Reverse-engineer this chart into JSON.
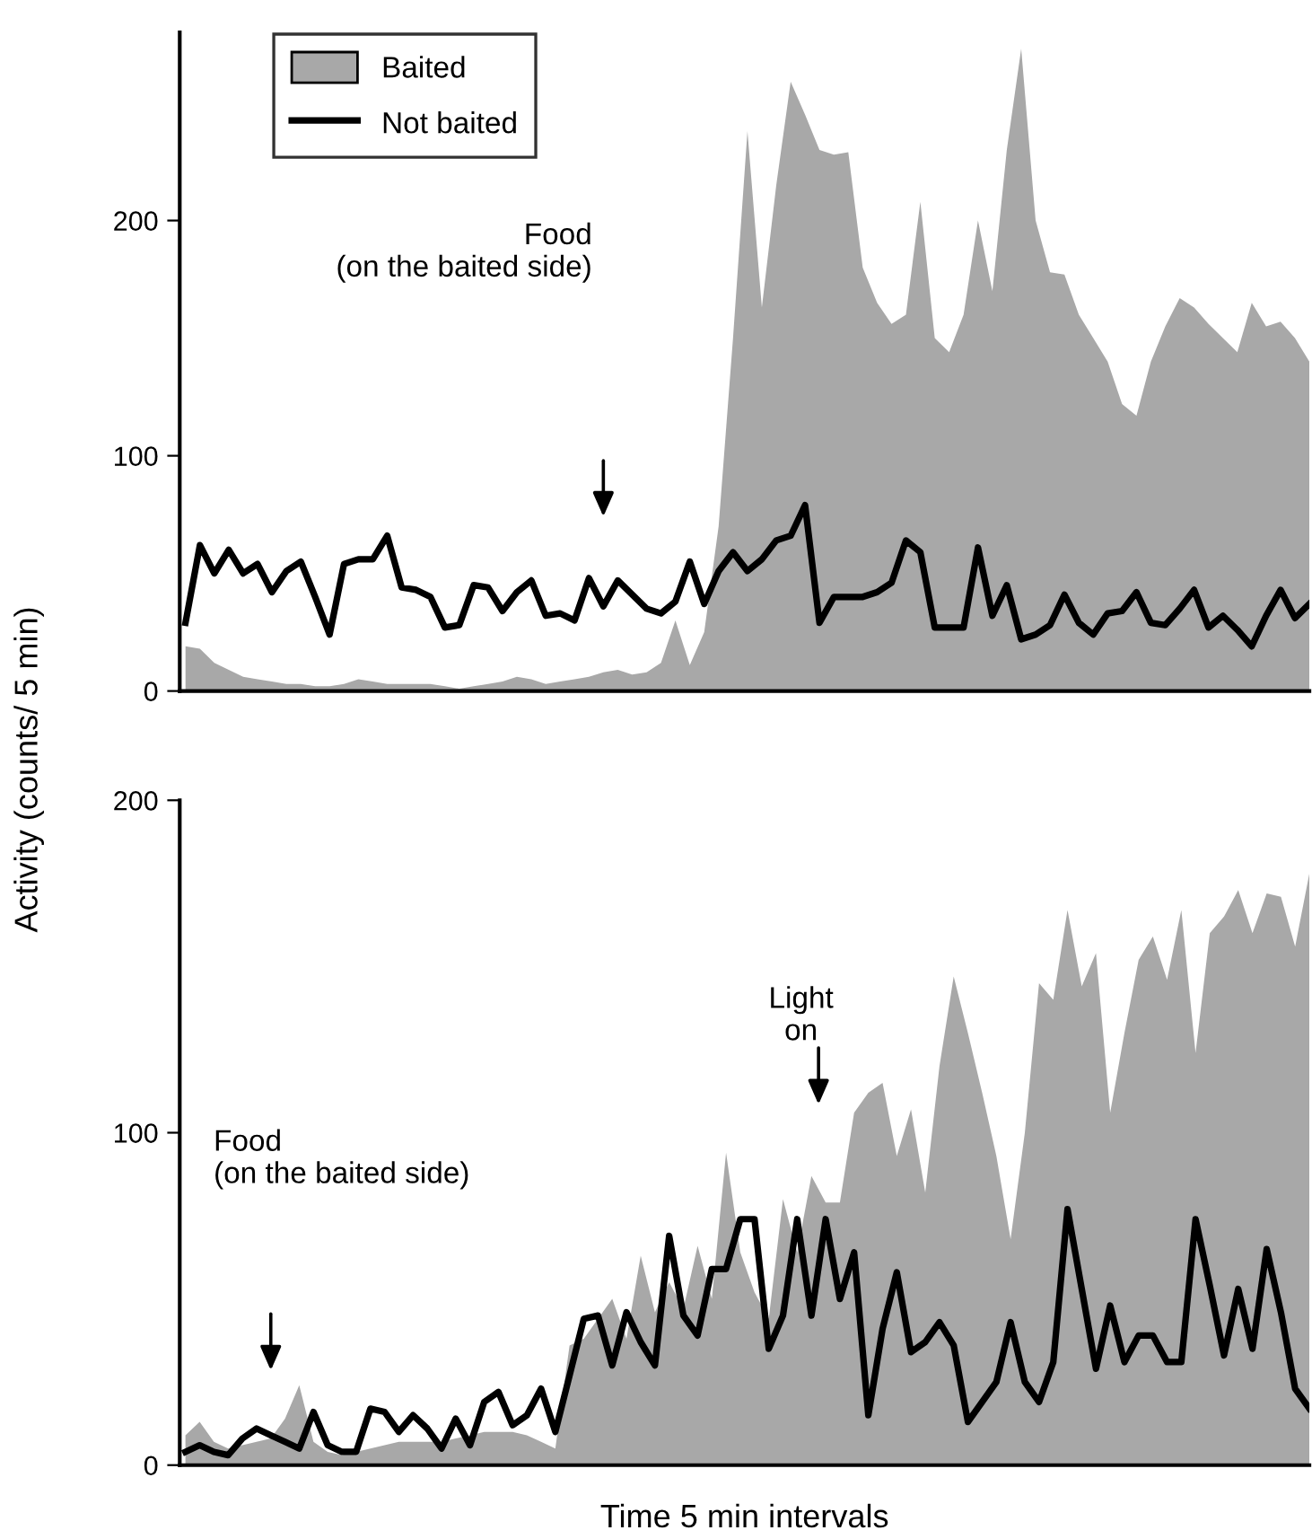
{
  "chart_data": [
    {
      "type": "area",
      "ylabel": "Activity (counts/ 5 min)",
      "categories": [
        null,
        null,
        null,
        null,
        null,
        null,
        null,
        null,
        null,
        null,
        null,
        null,
        null,
        null,
        null,
        null,
        null,
        null,
        null,
        null,
        null,
        null,
        null,
        null,
        null,
        null,
        null,
        null,
        null,
        null,
        null,
        null,
        null,
        null,
        null,
        null,
        null,
        null,
        null,
        null,
        null,
        null,
        null,
        null,
        null,
        null,
        null,
        null,
        null,
        null,
        null,
        null,
        null,
        null,
        null,
        null,
        null,
        null,
        null,
        null,
        null,
        null,
        null,
        null,
        null,
        null,
        null,
        null,
        null,
        null,
        null,
        null,
        null,
        null,
        null,
        null,
        null,
        null,
        null
      ],
      "series": [
        {
          "name": "Baited",
          "color": "#a8a8a8",
          "values": [
            19,
            18,
            12,
            9,
            6,
            5,
            4,
            3,
            3,
            2,
            2,
            3,
            5,
            4,
            3,
            3,
            3,
            3,
            2,
            1,
            2,
            3,
            4,
            6,
            5,
            3,
            4,
            5,
            6,
            8,
            9,
            7,
            8,
            12,
            30,
            11,
            25,
            70,
            150,
            238,
            163,
            215,
            259,
            245,
            230,
            228,
            229,
            180,
            165,
            156,
            160,
            208,
            150,
            144,
            160,
            200,
            170,
            230,
            273,
            200,
            178,
            177,
            160,
            150,
            140,
            122,
            117,
            140,
            155,
            167,
            163,
            156,
            150,
            144,
            165,
            155,
            157,
            150,
            140
          ]
        },
        {
          "name": "Not baited",
          "type": "line",
          "color": "#000000",
          "values": [
            29,
            62,
            50,
            60,
            50,
            54,
            42,
            51,
            55,
            40,
            24,
            54,
            56,
            56,
            66,
            44,
            43,
            40,
            27,
            28,
            45,
            44,
            34,
            42,
            47,
            32,
            33,
            30,
            48,
            36,
            47,
            41,
            35,
            33,
            38,
            55,
            37,
            51,
            59,
            51,
            56,
            64,
            66,
            79,
            29,
            40,
            40,
            40,
            42,
            46,
            64,
            59,
            27,
            27,
            27,
            61,
            32,
            45,
            22,
            24,
            28,
            41,
            29,
            24,
            33,
            34,
            42,
            29,
            28,
            35,
            43,
            27,
            32,
            26,
            19,
            32,
            43,
            31,
            37
          ]
        }
      ],
      "annotations": [
        "Food\n(on the baited side)"
      ],
      "ylim": [
        0,
        280
      ],
      "yticks": [
        0,
        100,
        200
      ],
      "tick_labels": "y",
      "legend": "top left",
      "grid": false,
      "line_style": "solid"
    },
    {
      "type": "area",
      "xlabel": "Time 5 min intervals",
      "categories": [
        null,
        null,
        null,
        null,
        null,
        null,
        null,
        null,
        null,
        null,
        null,
        null,
        null,
        null,
        null,
        null,
        null,
        null,
        null,
        null,
        null,
        null,
        null,
        null,
        null,
        null,
        null,
        null,
        null,
        null,
        null,
        null,
        null,
        null,
        null,
        null,
        null,
        null,
        null,
        null,
        null,
        null,
        null,
        null,
        null,
        null,
        null,
        null,
        null,
        null,
        null,
        null,
        null,
        null,
        null,
        null,
        null,
        null,
        null,
        null,
        null,
        null,
        null,
        null,
        null,
        null,
        null,
        null,
        null,
        null,
        null,
        null,
        null,
        null,
        null,
        null,
        null,
        null,
        null,
        null
      ],
      "series": [
        {
          "color": "#a8a8a8",
          "values": [
            9,
            13,
            7,
            5,
            6,
            7,
            8,
            14,
            24,
            7,
            4,
            3,
            4,
            5,
            6,
            7,
            7,
            7,
            7,
            8,
            9,
            10,
            10,
            10,
            9,
            7,
            5,
            36,
            38,
            44,
            50,
            38,
            63,
            46,
            55,
            47,
            66,
            50,
            94,
            64,
            52,
            44,
            80,
            64,
            87,
            79,
            79,
            106,
            112,
            115,
            93,
            107,
            82,
            120,
            147,
            130,
            112,
            93,
            68,
            100,
            145,
            140,
            167,
            144,
            154,
            106,
            130,
            152,
            159,
            146,
            167,
            124,
            160,
            165,
            173,
            160,
            172,
            171,
            156,
            178
          ]
        },
        {
          "type": "line",
          "color": "#000000",
          "values": [
            4,
            6,
            4,
            3,
            8,
            11,
            9,
            7,
            5,
            16,
            6,
            4,
            4,
            17,
            16,
            10,
            15,
            11,
            5,
            14,
            6,
            19,
            22,
            12,
            15,
            23,
            10,
            27,
            44,
            45,
            30,
            46,
            37,
            30,
            69,
            45,
            39,
            59,
            59,
            74,
            74,
            35,
            45,
            74,
            45,
            74,
            50,
            64,
            15,
            41,
            58,
            34,
            37,
            43,
            36,
            13,
            19,
            25,
            43,
            25,
            19,
            31,
            77,
            53,
            29,
            48,
            31,
            39,
            39,
            31,
            31,
            74,
            54,
            33,
            53,
            35,
            65,
            46,
            23,
            17
          ]
        }
      ],
      "annotations": [
        "Food\n(on the baited side)",
        "Light\non"
      ],
      "ylim": [
        0,
        200
      ],
      "yticks": [
        0,
        100,
        200
      ],
      "tick_labels": "y",
      "legend": false,
      "grid": false,
      "line_style": "solid"
    }
  ]
}
